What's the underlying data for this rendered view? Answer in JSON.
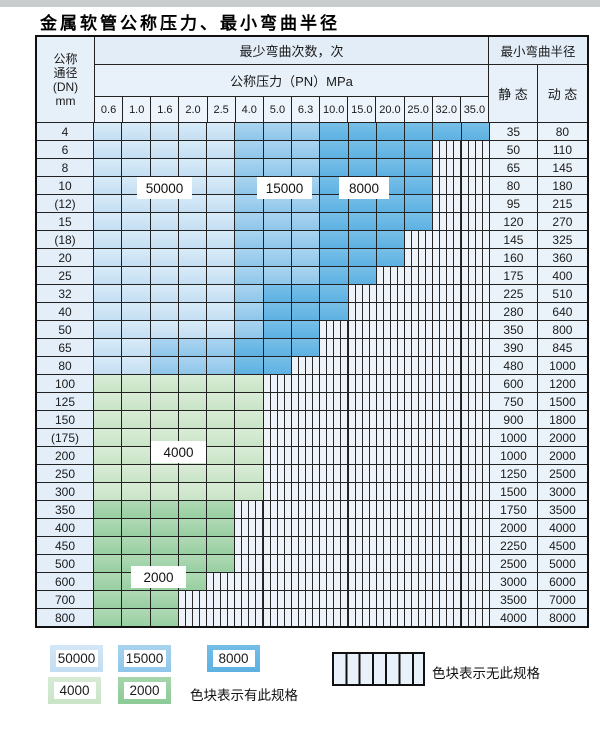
{
  "title": "金属软管公称压力、最小弯曲半径",
  "colors": {
    "band_50000": "#c4def2",
    "band_15000": "#8fc6ea",
    "band_8000": "#5db1e2",
    "band_4000": "#c9e4c6",
    "band_2000": "#98cfa1",
    "no_spec_bg": "#eef3fa",
    "grid_line": "#222222",
    "header_bg": "#e6f0f9",
    "top_strip": "#c9cdce"
  },
  "table": {
    "corner_lines": [
      "公称",
      "通径",
      "(DN)",
      "mm"
    ],
    "bend_header": "最少弯曲次数，次",
    "pn_header": "公称压力（PN）MPa",
    "radius_header": "最小弯曲半径",
    "static_header": "静 态",
    "dynamic_header": "动 态",
    "pressures": [
      "0.6",
      "1.0",
      "1.6",
      "2.0",
      "2.5",
      "4.0",
      "5.0",
      "6.3",
      "10.0",
      "15.0",
      "20.0",
      "25.0",
      "32.0",
      "35.0"
    ],
    "cell_code_meaning": {
      "L": "50000次",
      "M": "15000次",
      "D": "8000次",
      "A": "4000次",
      "B": "2000次",
      "X": "无此规格"
    },
    "rows": [
      {
        "dn": "4",
        "cells": [
          "L",
          "L",
          "L",
          "L",
          "L",
          "M",
          "M",
          "M",
          "D",
          "D",
          "D",
          "D",
          "D",
          "D"
        ],
        "static": "35",
        "dynamic": "80"
      },
      {
        "dn": "6",
        "cells": [
          "L",
          "L",
          "L",
          "L",
          "L",
          "M",
          "M",
          "M",
          "D",
          "D",
          "D",
          "D",
          "X",
          "X"
        ],
        "static": "50",
        "dynamic": "110"
      },
      {
        "dn": "8",
        "cells": [
          "L",
          "L",
          "L",
          "L",
          "L",
          "M",
          "M",
          "M",
          "D",
          "D",
          "D",
          "D",
          "X",
          "X"
        ],
        "static": "65",
        "dynamic": "145"
      },
      {
        "dn": "10",
        "cells": [
          "L",
          "L",
          "L",
          "L",
          "L",
          "M",
          "M",
          "M",
          "D",
          "D",
          "D",
          "D",
          "X",
          "X"
        ],
        "static": "80",
        "dynamic": "180"
      },
      {
        "dn": "(12)",
        "cells": [
          "L",
          "L",
          "L",
          "L",
          "L",
          "M",
          "M",
          "M",
          "D",
          "D",
          "D",
          "D",
          "X",
          "X"
        ],
        "static": "95",
        "dynamic": "215"
      },
      {
        "dn": "15",
        "cells": [
          "L",
          "L",
          "L",
          "L",
          "L",
          "M",
          "M",
          "M",
          "D",
          "D",
          "D",
          "D",
          "X",
          "X"
        ],
        "static": "120",
        "dynamic": "270"
      },
      {
        "dn": "(18)",
        "cells": [
          "L",
          "L",
          "L",
          "L",
          "L",
          "M",
          "M",
          "M",
          "D",
          "D",
          "D",
          "X",
          "X",
          "X"
        ],
        "static": "145",
        "dynamic": "325"
      },
      {
        "dn": "20",
        "cells": [
          "L",
          "L",
          "L",
          "L",
          "L",
          "M",
          "M",
          "M",
          "D",
          "D",
          "D",
          "X",
          "X",
          "X"
        ],
        "static": "160",
        "dynamic": "360"
      },
      {
        "dn": "25",
        "cells": [
          "L",
          "L",
          "L",
          "L",
          "L",
          "M",
          "M",
          "M",
          "D",
          "D",
          "X",
          "X",
          "X",
          "X"
        ],
        "static": "175",
        "dynamic": "400"
      },
      {
        "dn": "32",
        "cells": [
          "L",
          "L",
          "L",
          "L",
          "L",
          "M",
          "D",
          "D",
          "D",
          "X",
          "X",
          "X",
          "X",
          "X"
        ],
        "static": "225",
        "dynamic": "510"
      },
      {
        "dn": "40",
        "cells": [
          "L",
          "L",
          "L",
          "L",
          "L",
          "M",
          "D",
          "D",
          "D",
          "X",
          "X",
          "X",
          "X",
          "X"
        ],
        "static": "280",
        "dynamic": "640"
      },
      {
        "dn": "50",
        "cells": [
          "L",
          "L",
          "L",
          "L",
          "L",
          "M",
          "D",
          "D",
          "X",
          "X",
          "X",
          "X",
          "X",
          "X"
        ],
        "static": "350",
        "dynamic": "800"
      },
      {
        "dn": "65",
        "cells": [
          "L",
          "L",
          "M",
          "M",
          "M",
          "D",
          "D",
          "D",
          "X",
          "X",
          "X",
          "X",
          "X",
          "X"
        ],
        "static": "390",
        "dynamic": "845"
      },
      {
        "dn": "80",
        "cells": [
          "L",
          "L",
          "M",
          "M",
          "M",
          "D",
          "D",
          "X",
          "X",
          "X",
          "X",
          "X",
          "X",
          "X"
        ],
        "static": "480",
        "dynamic": "1000"
      },
      {
        "dn": "100",
        "cells": [
          "A",
          "A",
          "A",
          "A",
          "A",
          "A",
          "X",
          "X",
          "X",
          "X",
          "X",
          "X",
          "X",
          "X"
        ],
        "static": "600",
        "dynamic": "1200"
      },
      {
        "dn": "125",
        "cells": [
          "A",
          "A",
          "A",
          "A",
          "A",
          "A",
          "X",
          "X",
          "X",
          "X",
          "X",
          "X",
          "X",
          "X"
        ],
        "static": "750",
        "dynamic": "1500"
      },
      {
        "dn": "150",
        "cells": [
          "A",
          "A",
          "A",
          "A",
          "A",
          "A",
          "X",
          "X",
          "X",
          "X",
          "X",
          "X",
          "X",
          "X"
        ],
        "static": "900",
        "dynamic": "1800"
      },
      {
        "dn": "(175)",
        "cells": [
          "A",
          "A",
          "A",
          "A",
          "A",
          "A",
          "X",
          "X",
          "X",
          "X",
          "X",
          "X",
          "X",
          "X"
        ],
        "static": "1000",
        "dynamic": "2000"
      },
      {
        "dn": "200",
        "cells": [
          "A",
          "A",
          "A",
          "A",
          "A",
          "A",
          "X",
          "X",
          "X",
          "X",
          "X",
          "X",
          "X",
          "X"
        ],
        "static": "1000",
        "dynamic": "2000"
      },
      {
        "dn": "250",
        "cells": [
          "A",
          "A",
          "A",
          "A",
          "A",
          "A",
          "X",
          "X",
          "X",
          "X",
          "X",
          "X",
          "X",
          "X"
        ],
        "static": "1250",
        "dynamic": "2500"
      },
      {
        "dn": "300",
        "cells": [
          "A",
          "A",
          "A",
          "A",
          "A",
          "A",
          "X",
          "X",
          "X",
          "X",
          "X",
          "X",
          "X",
          "X"
        ],
        "static": "1500",
        "dynamic": "3000"
      },
      {
        "dn": "350",
        "cells": [
          "B",
          "B",
          "B",
          "B",
          "B",
          "X",
          "X",
          "X",
          "X",
          "X",
          "X",
          "X",
          "X",
          "X"
        ],
        "static": "1750",
        "dynamic": "3500"
      },
      {
        "dn": "400",
        "cells": [
          "B",
          "B",
          "B",
          "B",
          "B",
          "X",
          "X",
          "X",
          "X",
          "X",
          "X",
          "X",
          "X",
          "X"
        ],
        "static": "2000",
        "dynamic": "4000"
      },
      {
        "dn": "450",
        "cells": [
          "B",
          "B",
          "B",
          "B",
          "B",
          "X",
          "X",
          "X",
          "X",
          "X",
          "X",
          "X",
          "X",
          "X"
        ],
        "static": "2250",
        "dynamic": "4500"
      },
      {
        "dn": "500",
        "cells": [
          "B",
          "B",
          "B",
          "B",
          "B",
          "X",
          "X",
          "X",
          "X",
          "X",
          "X",
          "X",
          "X",
          "X"
        ],
        "static": "2500",
        "dynamic": "5000"
      },
      {
        "dn": "600",
        "cells": [
          "B",
          "B",
          "B",
          "B",
          "X",
          "X",
          "X",
          "X",
          "X",
          "X",
          "X",
          "X",
          "X",
          "X"
        ],
        "static": "3000",
        "dynamic": "6000"
      },
      {
        "dn": "700",
        "cells": [
          "B",
          "B",
          "B",
          "X",
          "X",
          "X",
          "X",
          "X",
          "X",
          "X",
          "X",
          "X",
          "X",
          "X"
        ],
        "static": "3500",
        "dynamic": "7000"
      },
      {
        "dn": "800",
        "cells": [
          "B",
          "B",
          "B",
          "X",
          "X",
          "X",
          "X",
          "X",
          "X",
          "X",
          "X",
          "X",
          "X",
          "X"
        ],
        "static": "4000",
        "dynamic": "8000"
      }
    ]
  },
  "overlays": {
    "ov50000": "50000",
    "ov15000": "15000",
    "ov8000": "8000",
    "ov4000": "4000",
    "ov2000": "2000"
  },
  "legend": {
    "sw50000": "50000",
    "sw15000": "15000",
    "sw8000": "8000",
    "sw4000": "4000",
    "sw2000": "2000",
    "has_spec_text": "色块表示有此规格",
    "no_spec_text": "色块表示无此规格"
  }
}
